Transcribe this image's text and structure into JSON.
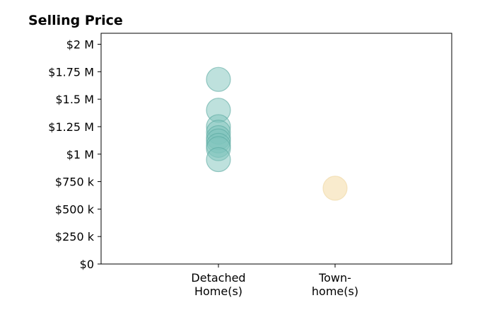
{
  "chart_data": {
    "type": "scatter",
    "title": "Selling Price",
    "xlabel": "",
    "ylabel": "",
    "categories": [
      [
        "Detached",
        "Home(s)"
      ],
      [
        "Town-",
        "home(s)"
      ]
    ],
    "ylim": [
      0,
      2100000
    ],
    "yticks": [
      {
        "value": 0,
        "label": "$0"
      },
      {
        "value": 250000,
        "label": "$250 k"
      },
      {
        "value": 500000,
        "label": "$500 k"
      },
      {
        "value": 750000,
        "label": "$750 k"
      },
      {
        "value": 1000000,
        "label": "$1 M"
      },
      {
        "value": 1250000,
        "label": "$1.25 M"
      },
      {
        "value": 1500000,
        "label": "$1.5 M"
      },
      {
        "value": 1750000,
        "label": "$1.75 M"
      },
      {
        "value": 2000000,
        "label": "$2 M"
      }
    ],
    "grid": false,
    "series": [
      {
        "category_index": 0,
        "color": "#7ec4bc",
        "stroke": "#5aa9a0",
        "opacity": 0.5,
        "values": [
          1680000,
          1400000,
          1250000,
          1200000,
          1150000,
          1120000,
          1080000,
          1050000,
          950000
        ]
      },
      {
        "category_index": 1,
        "color": "#f6e3b8",
        "stroke": "#efd5a0",
        "opacity": 0.7,
        "values": [
          690000
        ]
      }
    ]
  }
}
